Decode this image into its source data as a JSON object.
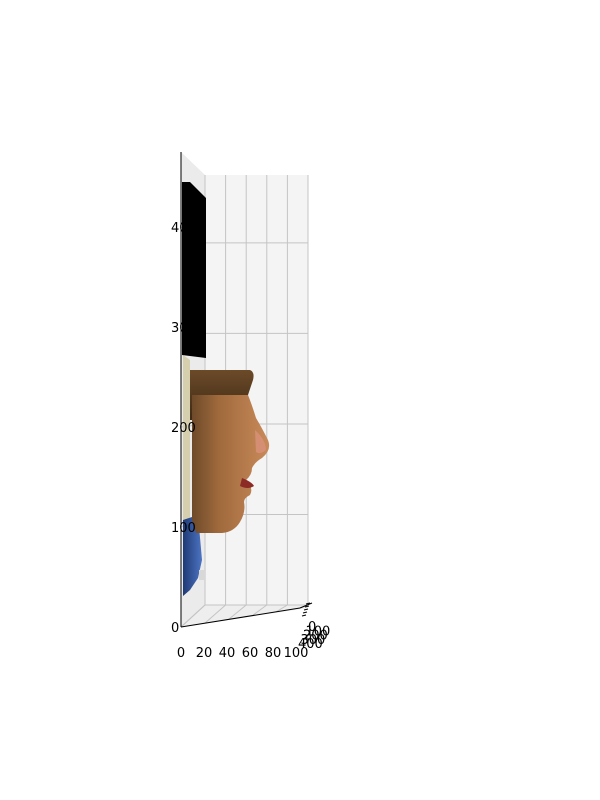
{
  "chart_data": {
    "type": "surface",
    "title": "",
    "xlabel": "",
    "ylabel": "",
    "zlabel": "",
    "grid": true,
    "x_axis": {
      "ticks": [
        0,
        20,
        40,
        60,
        80,
        100
      ],
      "range": [
        0,
        100
      ]
    },
    "y_axis": {
      "ticks": [
        0,
        100,
        200,
        300,
        400
      ],
      "range": [
        0,
        400
      ]
    },
    "z_axis": {
      "ticks": [
        0,
        100,
        200,
        300,
        400
      ],
      "range": [
        0,
        475
      ]
    },
    "colors": {
      "pane": "#f4f4f4",
      "grid": "#c4c4c4",
      "axis": "#000000",
      "hair_top": "#000000",
      "hair": "#5a3f22",
      "skin": "#b07a45",
      "shirt": "#2b4f94",
      "background_plane": "#d9d2b3"
    },
    "subject": "textured 3D face surface viewed in profile"
  }
}
